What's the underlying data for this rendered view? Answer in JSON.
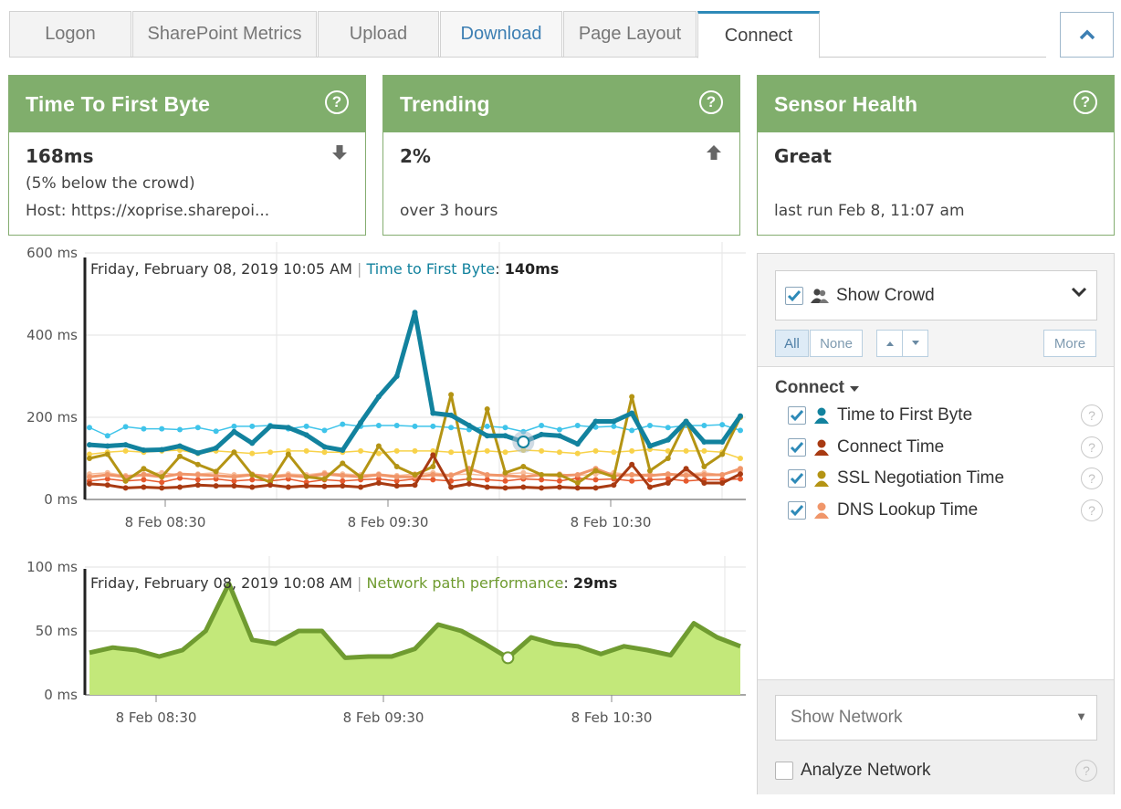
{
  "tabs": [
    "Logon",
    "SharePoint Metrics",
    "Upload",
    "Download",
    "Page Layout",
    "Connect"
  ],
  "active_tab": "Connect",
  "cards": {
    "ttfb": {
      "title": "Time To First Byte",
      "value": "168ms",
      "line1": "(5% below the crowd)",
      "line2": "Host: https://xoprise.sharepoi..."
    },
    "trending": {
      "title": "Trending",
      "value": "2%",
      "line1": "",
      "line2": "over 3 hours"
    },
    "sensor": {
      "title": "Sensor Health",
      "value": "Great",
      "line1": "",
      "line2": "last run Feb 8, 11:07 am"
    }
  },
  "help_glyph": "?",
  "colors": {
    "accent_green": "#80ae6c",
    "tab_active": "#2e8ab8",
    "ttfb": "#12829e",
    "connect": "#a83a12",
    "ssl": "#b49414",
    "dns": "#f0966a",
    "crowd_ttfb": "#3fc4ea",
    "crowd_ssl": "#f8d24a",
    "crowd_connect": "#e65a2e",
    "crowd_dns": "#f8bc9a",
    "network_fill": "#c3e87a",
    "network_line": "#6f9b30"
  },
  "chart_data": [
    {
      "type": "line",
      "tooltip": {
        "date": "Friday, February 08, 2019 10:05 AM",
        "series": "Time to First Byte",
        "value": "140ms"
      },
      "y_ticks": [
        "600 ms",
        "400 ms",
        "200 ms",
        "0 ms"
      ],
      "x_ticks": [
        "8 Feb 08:30",
        "8 Feb 09:30",
        "8 Feb 10:30"
      ],
      "ylim": [
        0,
        600
      ],
      "x": [
        0,
        1,
        2,
        3,
        4,
        5,
        6,
        7,
        8,
        9,
        10,
        11,
        12,
        13,
        14,
        15,
        16,
        17,
        18,
        19,
        20,
        21,
        22,
        23,
        24,
        25,
        26,
        27,
        28,
        29,
        30,
        31,
        32,
        33,
        34,
        35,
        36
      ],
      "series": [
        {
          "name": "Time to First Byte",
          "color": "#12829e",
          "width": 5,
          "values": [
            133,
            130,
            133,
            120,
            121,
            130,
            113,
            125,
            165,
            137,
            178,
            175,
            157,
            128,
            120,
            187,
            250,
            300,
            455,
            210,
            205,
            180,
            155,
            155,
            140,
            158,
            155,
            135,
            190,
            190,
            210,
            130,
            145,
            190,
            140,
            140,
            203
          ]
        },
        {
          "name": "Connect Time",
          "color": "#a83a12",
          "width": 3,
          "values": [
            38,
            35,
            28,
            30,
            28,
            30,
            35,
            33,
            33,
            30,
            35,
            30,
            33,
            32,
            33,
            30,
            40,
            33,
            35,
            108,
            30,
            38,
            30,
            28,
            30,
            28,
            30,
            28,
            28,
            35,
            85,
            30,
            40,
            75,
            40,
            40,
            62
          ]
        },
        {
          "name": "SSL Negotiation Time",
          "color": "#b49414",
          "width": 3,
          "values": [
            100,
            110,
            45,
            75,
            55,
            105,
            85,
            68,
            115,
            60,
            42,
            110,
            55,
            50,
            88,
            55,
            130,
            80,
            60,
            80,
            255,
            50,
            220,
            65,
            80,
            60,
            60,
            40,
            70,
            55,
            250,
            70,
            100,
            190,
            80,
            110,
            200
          ]
        },
        {
          "name": "DNS Lookup Time",
          "color": "#f0966a",
          "width": 3,
          "values": [
            55,
            60,
            55,
            60,
            55,
            62,
            60,
            58,
            55,
            60,
            55,
            58,
            55,
            62,
            58,
            55,
            60,
            55,
            55,
            60,
            58,
            75,
            60,
            58,
            55,
            60,
            58,
            60,
            75,
            58,
            60,
            58,
            62,
            58,
            60,
            60,
            75
          ]
        },
        {
          "name": "Crowd Time to First Byte",
          "color": "#3fc4ea",
          "width": 1.5,
          "values": [
            175,
            155,
            177,
            172,
            172,
            170,
            175,
            166,
            178,
            178,
            180,
            172,
            178,
            168,
            183,
            178,
            180,
            180,
            178,
            178,
            175,
            170,
            178,
            175,
            165,
            180,
            170,
            180,
            176,
            178,
            168,
            180,
            175,
            180,
            180,
            182,
            168
          ]
        },
        {
          "name": "Crowd SSL Negotiation Time",
          "color": "#f8d24a",
          "width": 1.5,
          "values": [
            110,
            115,
            118,
            115,
            118,
            120,
            112,
            118,
            115,
            112,
            115,
            118,
            118,
            115,
            115,
            118,
            112,
            118,
            118,
            118,
            115,
            115,
            118,
            115,
            120,
            118,
            115,
            112,
            118,
            115,
            118,
            122,
            118,
            118,
            118,
            115,
            100
          ]
        },
        {
          "name": "Crowd Connect Time",
          "color": "#e65a2e",
          "width": 1.5,
          "values": [
            45,
            50,
            45,
            48,
            42,
            52,
            48,
            50,
            45,
            48,
            45,
            50,
            42,
            48,
            45,
            48,
            50,
            45,
            50,
            48,
            45,
            50,
            48,
            45,
            50,
            48,
            45,
            52,
            48,
            50,
            45,
            48,
            50,
            45,
            48,
            48,
            50
          ]
        },
        {
          "name": "Crowd DNS Lookup Time",
          "color": "#f8bc9a",
          "width": 1.5,
          "values": [
            62,
            65,
            58,
            62,
            65,
            60,
            62,
            65,
            60,
            62,
            58,
            62,
            60,
            65,
            62,
            60,
            62,
            58,
            62,
            65,
            60,
            62,
            58,
            62,
            65,
            60,
            62,
            58,
            62,
            65,
            60,
            62,
            58,
            62,
            65,
            60,
            70
          ]
        }
      ]
    },
    {
      "type": "area",
      "tooltip": {
        "date": "Friday, February 08, 2019 10:08 AM",
        "series": "Network path performance",
        "value": "29ms"
      },
      "y_ticks": [
        "100 ms",
        "50 ms",
        "0 ms"
      ],
      "x_ticks": [
        "8 Feb 08:30",
        "8 Feb 09:30",
        "8 Feb 10:30"
      ],
      "ylim": [
        0,
        100
      ],
      "x": [
        0,
        1,
        2,
        3,
        4,
        5,
        6,
        7,
        8,
        9,
        10,
        11,
        12,
        13,
        14,
        15,
        16,
        17,
        18,
        19,
        20,
        21,
        22,
        23,
        24,
        25,
        26,
        27,
        28
      ],
      "series": [
        {
          "name": "Network path performance",
          "color": "#6f9b30",
          "fill": "#c3e87a",
          "values": [
            33,
            37,
            35,
            30,
            35,
            50,
            87,
            43,
            40,
            50,
            50,
            29,
            30,
            30,
            36,
            55,
            50,
            40,
            29,
            45,
            40,
            38,
            32,
            38,
            35,
            31,
            56,
            45,
            38
          ]
        }
      ]
    }
  ],
  "panel": {
    "crowd_label": "Show Crowd",
    "btn_all": "All",
    "btn_none": "None",
    "btn_more": "More",
    "group_title": "Connect",
    "series": [
      {
        "label": "Time to First Byte",
        "color": "#12829e"
      },
      {
        "label": "Connect Time",
        "color": "#a83a12"
      },
      {
        "label": "SSL Negotiation Time",
        "color": "#b49414"
      },
      {
        "label": "DNS Lookup Time",
        "color": "#f0966a"
      }
    ],
    "network_placeholder": "Show Network",
    "analyze_label": "Analyze Network"
  }
}
